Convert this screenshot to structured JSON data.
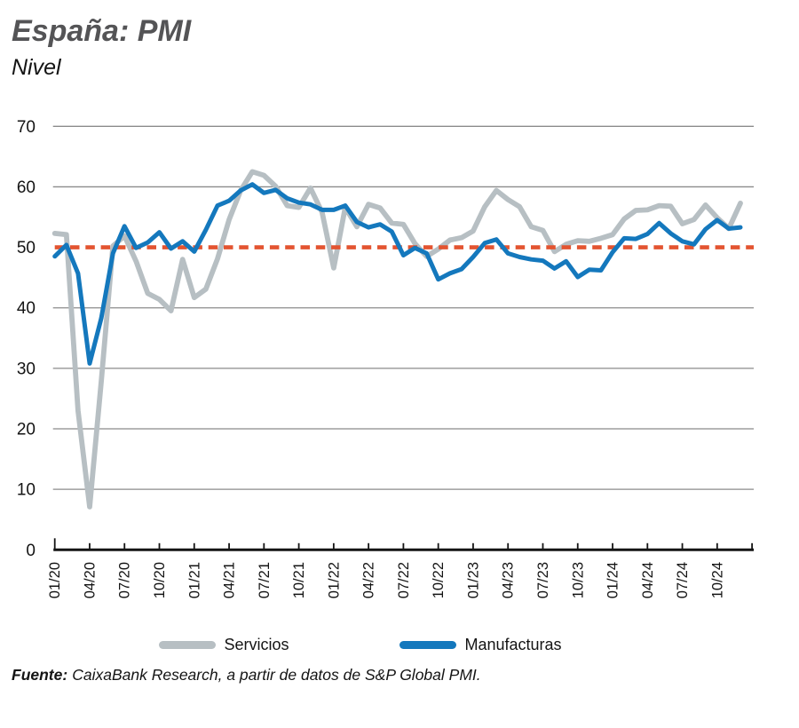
{
  "chart_data": {
    "type": "line",
    "title": "España: PMI",
    "subtitle": "Nivel",
    "source": {
      "label": "Fuente:",
      "text": "CaixaBank Research, a partir de datos de S&P Global PMI."
    },
    "ylim": [
      0,
      70
    ],
    "y_ticks": [
      0,
      10,
      20,
      30,
      40,
      50,
      60,
      70
    ],
    "grid": true,
    "legend_position": "bottom",
    "reference_line": {
      "value": 50,
      "color": "#e35430",
      "style": "dashed"
    },
    "x_tick_labels": [
      "01/20",
      "04/20",
      "07/20",
      "10/20",
      "01/21",
      "04/21",
      "07/21",
      "10/21",
      "01/22",
      "04/22",
      "07/22",
      "10/22",
      "01/23",
      "04/23",
      "07/23",
      "10/23",
      "01/24",
      "04/24",
      "07/24",
      "10/24"
    ],
    "x_frequency": "monthly",
    "series": [
      {
        "name": "Servicios",
        "color": "#b7bfc3",
        "values": [
          52.3,
          52.1,
          23.0,
          7.1,
          27.9,
          50.2,
          51.9,
          47.7,
          42.4,
          41.4,
          39.5,
          48.0,
          41.7,
          43.1,
          48.1,
          54.6,
          59.4,
          62.5,
          61.9,
          60.1,
          56.9,
          56.6,
          59.8,
          55.8,
          46.6,
          56.6,
          53.4,
          57.1,
          56.5,
          54.0,
          53.8,
          50.6,
          48.5,
          49.7,
          51.2,
          51.6,
          52.7,
          56.7,
          59.4,
          57.9,
          56.7,
          53.4,
          52.8,
          49.3,
          50.5,
          51.1,
          51.0,
          51.5,
          52.1,
          54.7,
          56.1,
          56.2,
          56.9,
          56.8,
          53.9,
          54.6,
          57.0,
          54.9,
          53.1,
          57.3
        ]
      },
      {
        "name": "Manufacturas",
        "color": "#1478bd",
        "values": [
          48.5,
          50.4,
          45.7,
          30.8,
          38.3,
          49.0,
          53.5,
          49.9,
          50.8,
          52.5,
          49.8,
          51.0,
          49.3,
          52.9,
          56.9,
          57.7,
          59.4,
          60.4,
          59.0,
          59.5,
          58.1,
          57.4,
          57.1,
          56.2,
          56.2,
          56.9,
          54.2,
          53.3,
          53.8,
          52.6,
          48.7,
          49.9,
          49.0,
          44.7,
          45.7,
          46.4,
          48.4,
          50.7,
          51.3,
          49.0,
          48.4,
          48.0,
          47.8,
          46.5,
          47.7,
          45.1,
          46.3,
          46.2,
          49.2,
          51.5,
          51.4,
          52.2,
          54.0,
          52.3,
          51.0,
          50.5,
          53.0,
          54.5,
          53.1,
          53.3
        ]
      }
    ],
    "axis_color": "#141414",
    "gridline_color": "#8b8b8b"
  }
}
